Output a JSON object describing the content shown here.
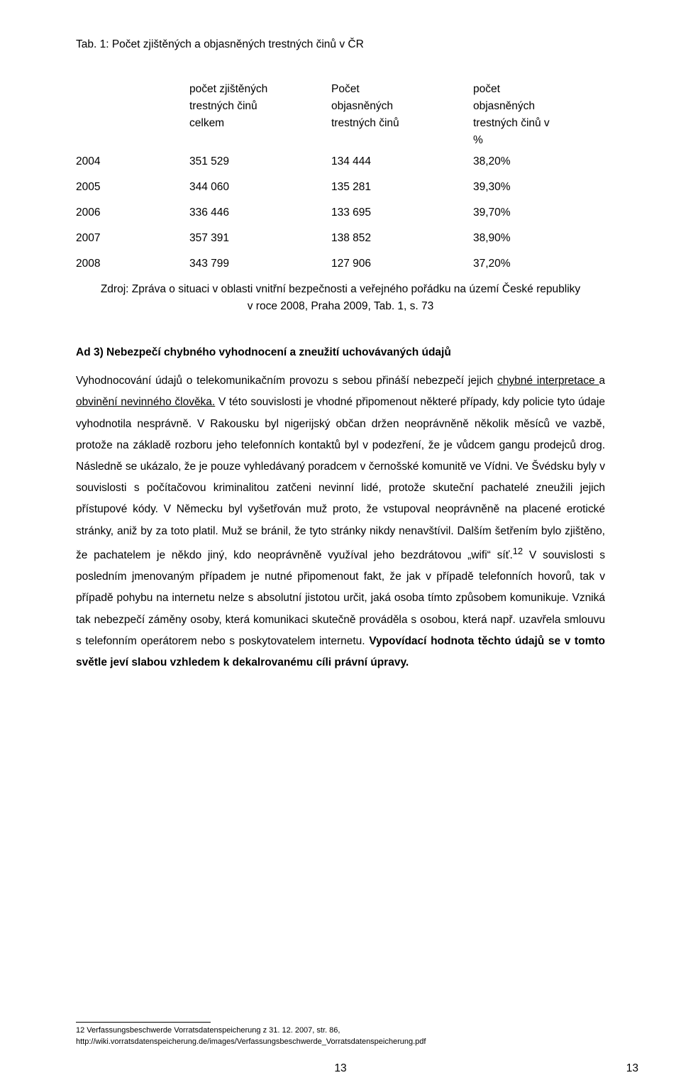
{
  "title": "Tab. 1: Počet zjištěných a objasněných trestných činů v ČR",
  "table": {
    "headers": {
      "year": "",
      "total": [
        "počet zjištěných",
        "trestných činů",
        "celkem"
      ],
      "solved": [
        "Počet",
        "objasněných",
        "trestných činů"
      ],
      "pct": [
        "počet",
        "objasněných",
        "trestných činů v",
        "%"
      ]
    },
    "rows": [
      {
        "year": "2004",
        "total": "351 529",
        "solved": "134 444",
        "pct": "38,20%"
      },
      {
        "year": "2005",
        "total": "344 060",
        "solved": "135 281",
        "pct": "39,30%"
      },
      {
        "year": "2006",
        "total": "336 446",
        "solved": "133 695",
        "pct": "39,70%"
      },
      {
        "year": "2007",
        "total": "357 391",
        "solved": "138 852",
        "pct": "38,90%"
      },
      {
        "year": "2008",
        "total": "343 799",
        "solved": "127 906",
        "pct": "37,20%"
      }
    ]
  },
  "source_line1": "Zdroj: Zpráva o situaci v oblasti vnitřní bezpečnosti a veřejného pořádku na území České republiky",
  "source_line2": "v roce 2008, Praha 2009, Tab. 1, s. 73",
  "heading3": "Ad 3) Nebezpečí chybného vyhodnocení a zneužití uchovávaných údajů",
  "para": {
    "p1a": "Vyhodnocování údajů o telekomunikačním provozu s sebou přináší nebezpečí jejich ",
    "p1_u1": "chybné interpretace ",
    "p1b": "a ",
    "p1_u2": "obvinění nevinného člověka.",
    "p1c": " V této souvislosti je vhodné připomenout některé případy, kdy policie tyto údaje vyhodnotila nesprávně. V Rakousku byl nigerijský občan držen neoprávněně několik měsíců ve vazbě, protože na základě rozboru jeho telefonních kontaktů byl v podezření, že je vůdcem gangu prodejců drog. Následně se ukázalo, že je pouze vyhledávaný poradcem v černošské komunitě ve Vídni. Ve Švédsku byly v souvislosti s počítačovou kriminalitou zatčeni nevinní lidé, protože skuteční pachatelé zneužili jejich přístupové kódy. V Německu byl vyšetřován muž proto, že vstupoval neoprávněně na placené erotické stránky, aniž by za toto platil. Muž se bránil, že tyto stránky nikdy nenavštívil. Dalším šetřením bylo zjištěno, že pachatelem je někdo jiný, kdo neoprávněně využíval jeho bezdrátovou „wifi“ síť.",
    "p1_fn": "12",
    "p1d": " V souvislosti s posledním jmenovaným případem je nutné připomenout fakt, že jak v případě telefonních hovorů, tak v případě pohybu na internetu nelze s absolutní jistotou určit, jaká osoba tímto způsobem komunikuje. Vzniká tak nebezpečí záměny osoby, která komunikaci skutečně prováděla s osobou, která např. uzavřela smlouvu s telefonním operátorem nebo s poskytovatelem internetu. ",
    "p1_bold": "Vypovídací hodnota těchto údajů se v tomto světle jeví slabou vzhledem k dekalrovanému cíli právní úpravy."
  },
  "footnote": {
    "ref": "12",
    "line1": " Verfassungsbeschwerde Vorratsdatenspeicherung z 31. 12. 2007, str. 86,",
    "line2": "http://wiki.vorratsdatenspeicherung.de/images/Verfassungsbeschwerde_Vorratsdatenspeicherung.pdf"
  },
  "pagenum": "13"
}
